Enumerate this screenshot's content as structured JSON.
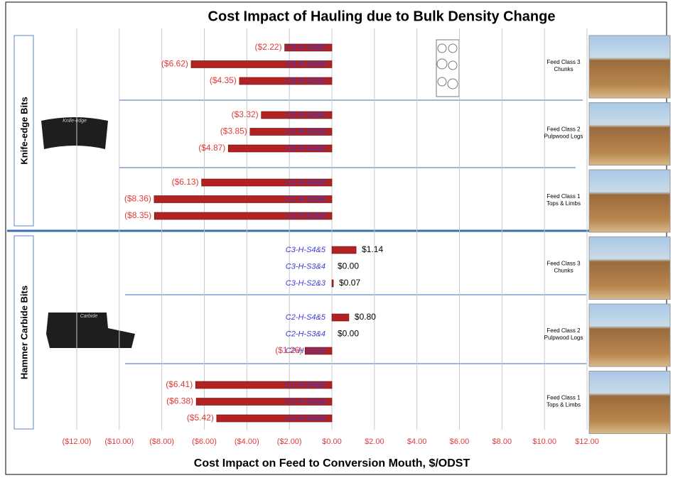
{
  "chart_data": {
    "type": "bar",
    "orientation": "horizontal",
    "title": "Cost Impact of Hauling due to Bulk Density Change",
    "x_label": "Cost Impact on Feed to Conversion Mouth, $/ODST",
    "categories": [
      "C3-K-S4&5",
      "C3-K-S3&4",
      "C3-K-S2&3",
      "C2-K-S4&5",
      "C2-K-S3&4",
      "C2-K-S2&3",
      "C1-K-S4&5",
      "C1-K-S3&4",
      "C1-K-S2&3",
      "C3-H-S4&5",
      "C3-H-S3&4",
      "C3-H-S2&3",
      "C2-H-S4&5",
      "C2-H-S3&4",
      "C2-H-S2&3",
      "C1-H-S4&5",
      "C1-H-S3&4",
      "C1-H-S2&3"
    ],
    "values": [
      -2.22,
      -6.62,
      -4.35,
      -3.32,
      -3.85,
      -4.87,
      -6.13,
      -8.36,
      -8.35,
      1.14,
      0.0,
      0.07,
      0.8,
      0.0,
      -1.26,
      -6.41,
      -6.38,
      -5.42
    ],
    "value_labels": [
      "($2.22)",
      "($6.62)",
      "($4.35)",
      "($3.32)",
      "($3.85)",
      "($4.87)",
      "($6.13)",
      "($8.36)",
      "($8.35)",
      "$1.14",
      "$0.00",
      "$0.07",
      "$0.80",
      "$0.00",
      "($1.26)",
      "($6.41)",
      "($6.38)",
      "($5.42)"
    ],
    "color": "#b22222",
    "xlim": [
      -12,
      12
    ],
    "xticks": [
      {
        "value": -12,
        "label": "($12.00)"
      },
      {
        "value": -10,
        "label": "($10.00)"
      },
      {
        "value": -8,
        "label": "($8.00)"
      },
      {
        "value": -6,
        "label": "($6.00)"
      },
      {
        "value": -4,
        "label": "($4.00)"
      },
      {
        "value": -2,
        "label": "($2.00)"
      },
      {
        "value": 0,
        "label": "$0.00"
      },
      {
        "value": 2,
        "label": "$2.00"
      },
      {
        "value": 4,
        "label": "$4.00"
      },
      {
        "value": 6,
        "label": "$6.00"
      },
      {
        "value": 8,
        "label": "$8.00"
      },
      {
        "value": 10,
        "label": "$10.00"
      },
      {
        "value": 12,
        "label": "$12.00"
      }
    ],
    "grid": true,
    "group_labels": [
      "Knife-edge Bits",
      "Hammer Carbide Bits"
    ],
    "tool_labels": [
      "Knife-edge",
      "Carbide"
    ],
    "feed_class_labels": [
      [
        "Feed Class 3",
        "Chunks"
      ],
      [
        "Feed Class 2",
        "Pulpwood Logs"
      ],
      [
        "Feed Class 1",
        "Tops & Limbs"
      ],
      [
        "Feed Class 3",
        "Chunks"
      ],
      [
        "Feed Class 2",
        "Pulpwood Logs"
      ],
      [
        "Feed Class 1",
        "Tops & Limbs"
      ]
    ]
  }
}
